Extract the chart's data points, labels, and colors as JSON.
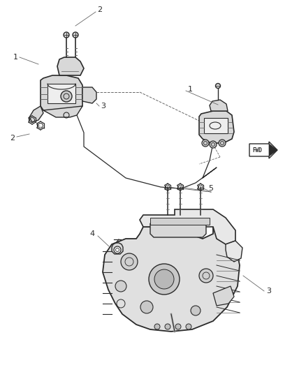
{
  "bg_color": "#ffffff",
  "lc": "#2a2a2a",
  "lc_light": "#666666",
  "lc_fill": "#d8d8d8",
  "lc_dark": "#111111",
  "fig_width": 4.38,
  "fig_height": 5.33,
  "dpi": 100,
  "labels": {
    "1_top": [
      1,
      "1",
      22,
      78
    ],
    "2_top": [
      2,
      "2",
      141,
      14
    ],
    "2_bot": [
      2,
      "2",
      15,
      195
    ],
    "3_left": [
      3,
      "3",
      146,
      148
    ],
    "1_right": [
      1,
      "1",
      267,
      124
    ],
    "5_bot": [
      5,
      "5",
      298,
      268
    ],
    "4_bot": [
      4,
      "4",
      128,
      335
    ],
    "3_bot": [
      3,
      "3",
      383,
      413
    ]
  }
}
